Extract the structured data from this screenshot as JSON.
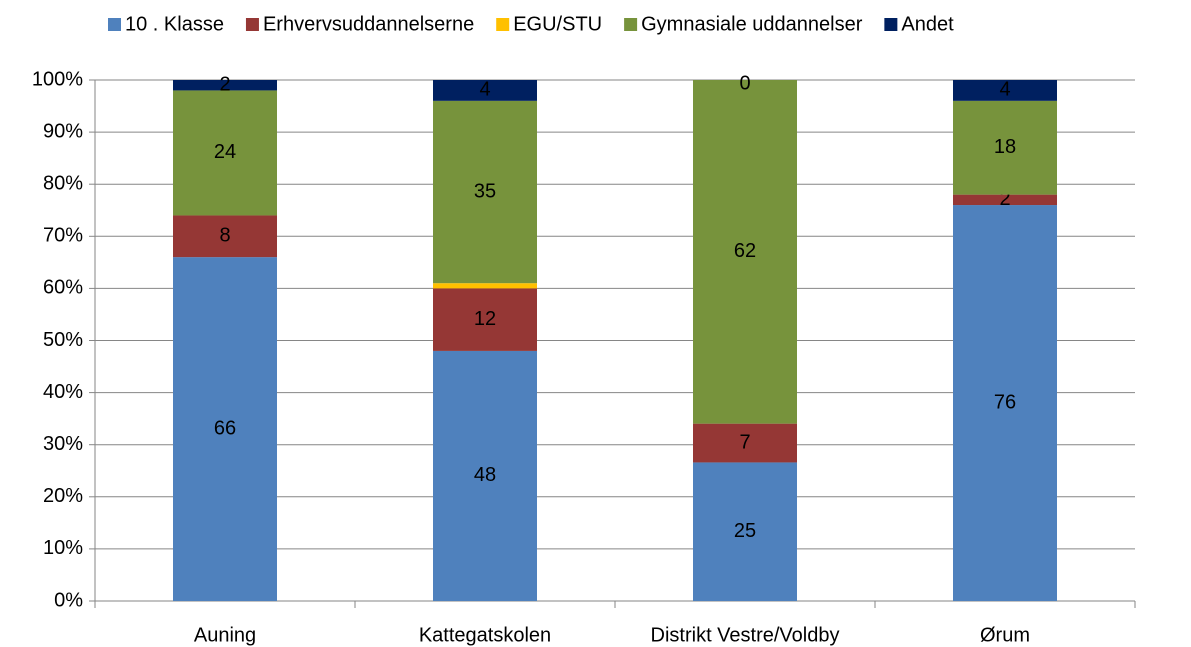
{
  "chart_data": {
    "type": "bar",
    "stacked": "percent",
    "categories": [
      "Auning",
      "Kattegatskolen",
      "Distrikt Vestre/Voldby",
      "Ørum"
    ],
    "series": [
      {
        "name": "10 . Klasse",
        "color": "#4f81bd",
        "values": [
          66,
          48,
          25,
          76
        ],
        "data_labels": true
      },
      {
        "name": "Erhvervsuddannelserne",
        "color": "#953735",
        "values": [
          8,
          12,
          7,
          2
        ],
        "data_labels": true
      },
      {
        "name": "EGU/STU",
        "color": "#ffc000",
        "values": [
          0,
          1,
          0,
          0
        ],
        "data_labels": false
      },
      {
        "name": "Gymnasiale uddannelser",
        "color": "#77933c",
        "values": [
          24,
          35,
          62,
          18
        ],
        "data_labels": true
      },
      {
        "name": "Andet",
        "color": "#002060",
        "values": [
          2,
          4,
          0,
          4
        ],
        "data_labels": true
      }
    ],
    "ylim": [
      0,
      100
    ],
    "yticks": [
      {
        "value": 0,
        "label": "0%"
      },
      {
        "value": 10,
        "label": "10%"
      },
      {
        "value": 20,
        "label": "20%"
      },
      {
        "value": 30,
        "label": "30%"
      },
      {
        "value": 40,
        "label": "40%"
      },
      {
        "value": 50,
        "label": "50%"
      },
      {
        "value": 60,
        "label": "60%"
      },
      {
        "value": 70,
        "label": "70%"
      },
      {
        "value": 80,
        "label": "80%"
      },
      {
        "value": 90,
        "label": "90%"
      },
      {
        "value": 100,
        "label": "100%"
      }
    ],
    "grid": true,
    "legend": "top"
  }
}
